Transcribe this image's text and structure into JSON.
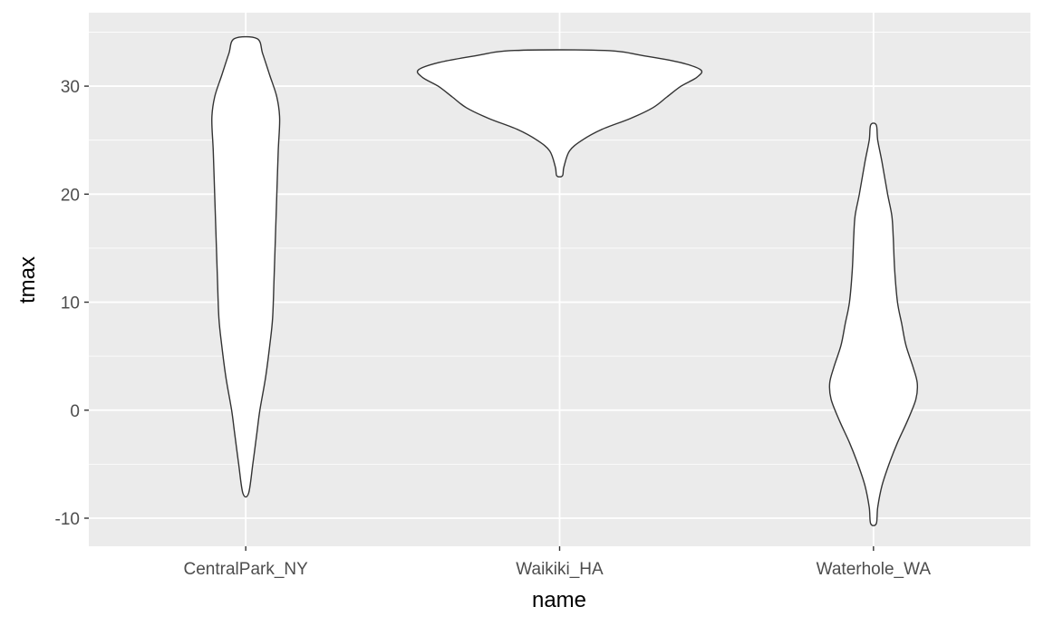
{
  "chart_data": {
    "type": "violin",
    "xlabel": "name",
    "ylabel": "tmax",
    "categories": [
      "CentralPark_NY",
      "Waikiki_HA",
      "Waterhole_WA"
    ],
    "ylim": [
      -12.6,
      36.8
    ],
    "yticks": [
      -10,
      0,
      10,
      20,
      30
    ],
    "ytick_labels": [
      "-10",
      "0",
      "10",
      "20",
      "30"
    ],
    "grid": true,
    "colors": {
      "panel": "#ebebeb",
      "grid": "#ffffff",
      "fill": "#ffffff",
      "outline": "#333333"
    },
    "violins": [
      {
        "name": "CentralPark_NY",
        "min": -7.7,
        "max": 34.4,
        "profile": [
          [
            -7.7,
            0.02
          ],
          [
            -5,
            0.05
          ],
          [
            -2,
            0.08
          ],
          [
            0,
            0.1
          ],
          [
            3,
            0.14
          ],
          [
            6,
            0.17
          ],
          [
            8.5,
            0.19
          ],
          [
            12,
            0.2
          ],
          [
            16,
            0.21
          ],
          [
            20,
            0.22
          ],
          [
            24,
            0.23
          ],
          [
            27,
            0.24
          ],
          [
            29,
            0.22
          ],
          [
            31,
            0.17
          ],
          [
            33,
            0.12
          ],
          [
            34.4,
            0.08
          ]
        ]
      },
      {
        "name": "Waikiki_HA",
        "min": 21.7,
        "max": 33.3,
        "profile": [
          [
            21.7,
            0.02
          ],
          [
            22.5,
            0.03
          ],
          [
            24,
            0.07
          ],
          [
            25,
            0.16
          ],
          [
            26,
            0.3
          ],
          [
            27,
            0.5
          ],
          [
            28,
            0.66
          ],
          [
            29,
            0.76
          ],
          [
            30,
            0.86
          ],
          [
            30.8,
            0.97
          ],
          [
            31.5,
            1.0
          ],
          [
            32.2,
            0.85
          ],
          [
            32.8,
            0.6
          ],
          [
            33.3,
            0.32
          ]
        ]
      },
      {
        "name": "Waterhole_WA",
        "min": -10.5,
        "max": 26.4,
        "profile": [
          [
            -10.5,
            0.02
          ],
          [
            -9,
            0.03
          ],
          [
            -7,
            0.06
          ],
          [
            -5,
            0.11
          ],
          [
            -3,
            0.17
          ],
          [
            -1,
            0.24
          ],
          [
            1,
            0.3
          ],
          [
            2.5,
            0.31
          ],
          [
            4,
            0.28
          ],
          [
            6,
            0.23
          ],
          [
            8,
            0.2
          ],
          [
            10,
            0.17
          ],
          [
            13,
            0.15
          ],
          [
            16,
            0.14
          ],
          [
            18,
            0.13
          ],
          [
            20,
            0.1
          ],
          [
            23,
            0.06
          ],
          [
            25,
            0.03
          ],
          [
            26.4,
            0.02
          ]
        ]
      }
    ]
  }
}
